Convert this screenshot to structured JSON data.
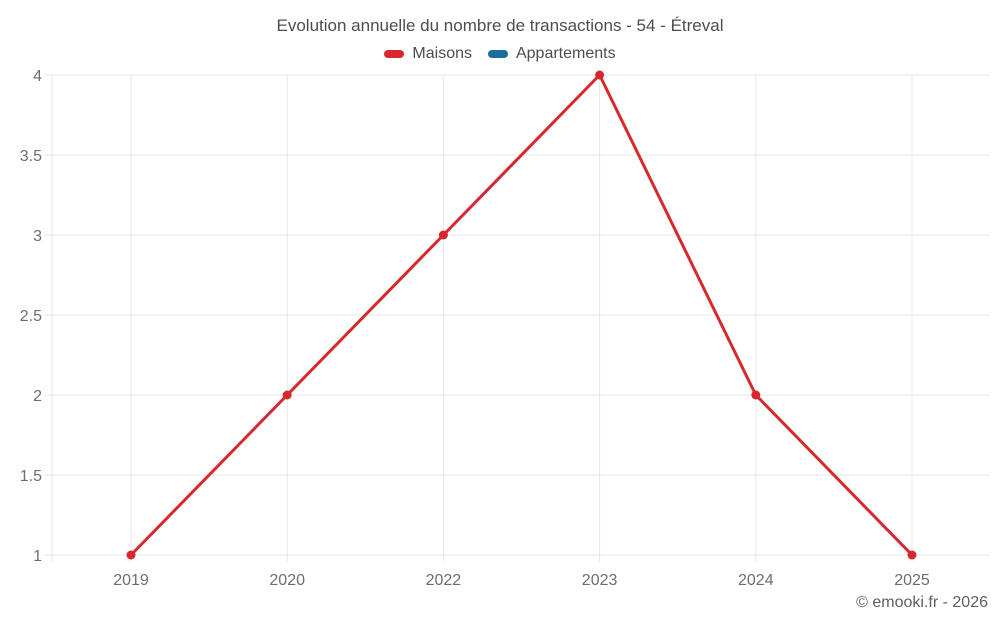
{
  "title": "Evolution annuelle du nombre de transactions - 54 - Étreval",
  "legend": [
    {
      "label": "Maisons",
      "color": "#d7282d"
    },
    {
      "label": "Appartements",
      "color": "#1a6d9a"
    }
  ],
  "footer": "© emooki.fr - 2026",
  "colors": {
    "maisons": "#d7282d",
    "appartements": "#1a6d9a",
    "grid": "#e7e7e7",
    "tick_label": "#6d6d6d",
    "title_text": "#4d4d4d",
    "background": "#ffffff"
  },
  "chart_data": {
    "type": "line",
    "title": "Evolution annuelle du nombre de transactions - 54 - Étreval",
    "categories": [
      "2019",
      "2020",
      "2022",
      "2023",
      "2024",
      "2025"
    ],
    "series": [
      {
        "name": "Maisons",
        "color": "#d7282d",
        "values": [
          1,
          2,
          3,
          4,
          2,
          1
        ]
      },
      {
        "name": "Appartements",
        "color": "#1a6d9a",
        "values": []
      }
    ],
    "xlabel": "",
    "ylabel": "",
    "ylim": [
      1,
      4
    ],
    "ytick_step": 0.5,
    "grid": true,
    "legend_position": "top",
    "markers": true
  }
}
